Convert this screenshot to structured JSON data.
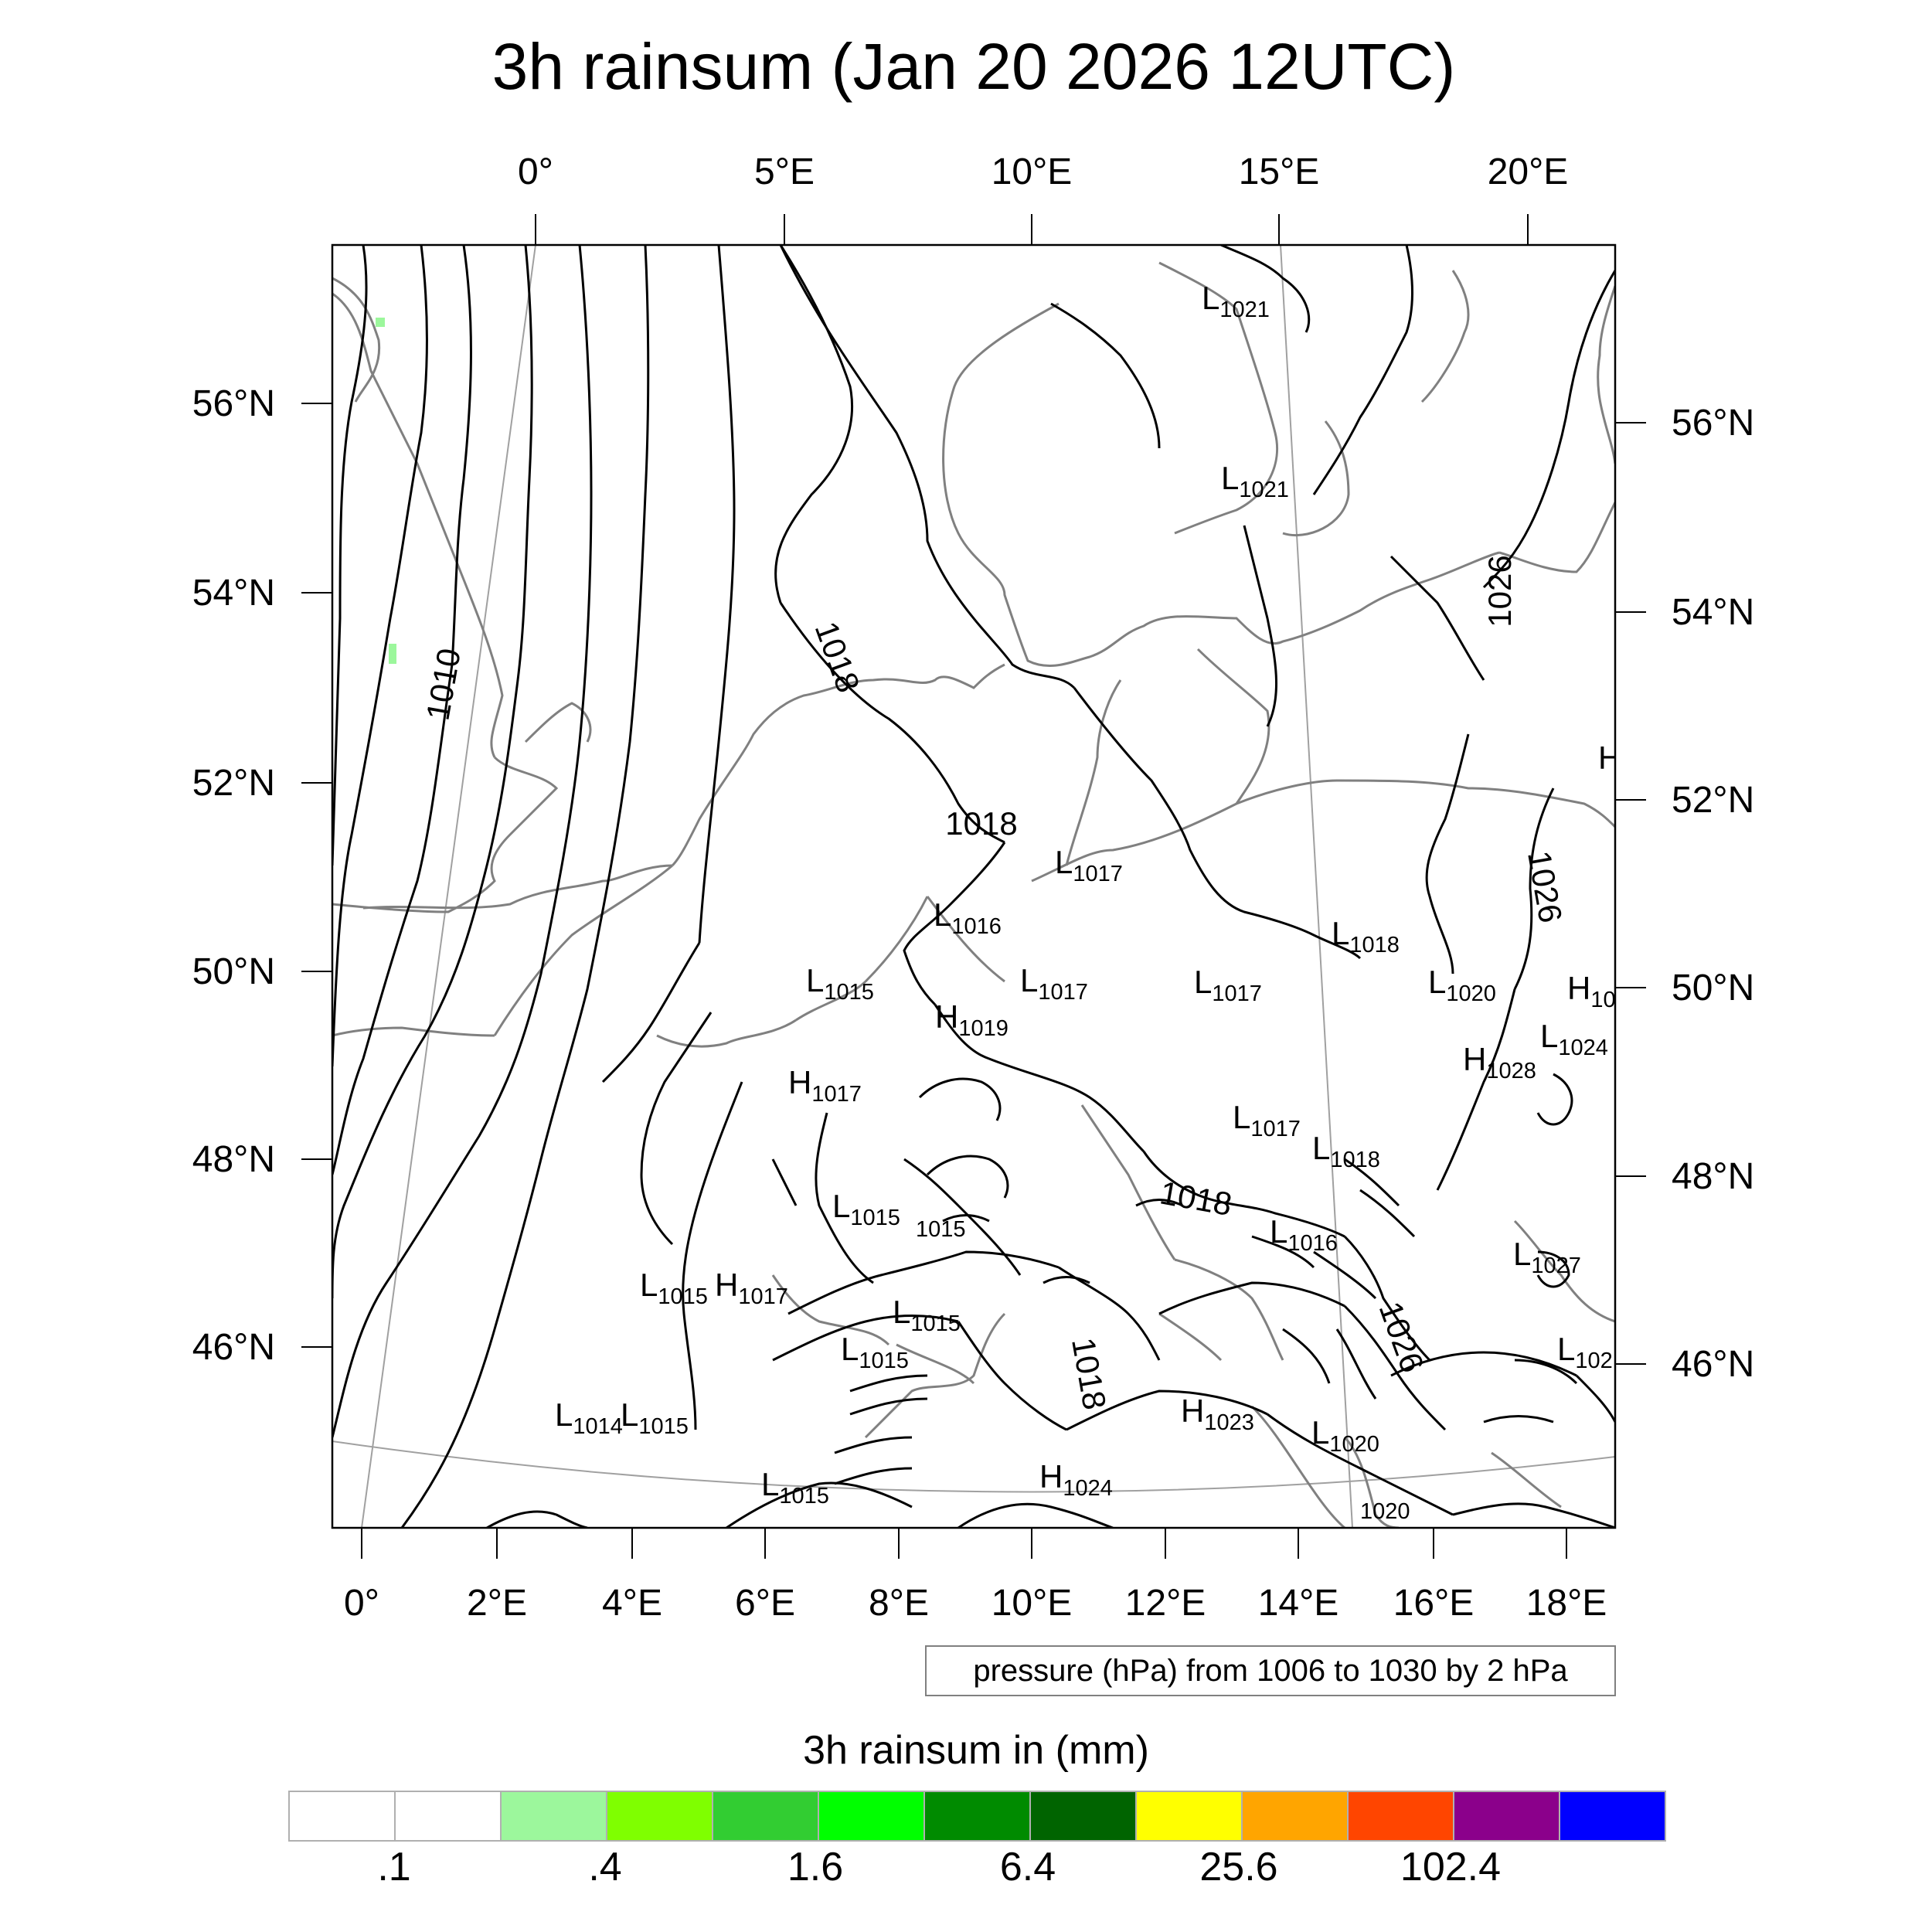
{
  "title": "3h rainsum (Jan 20 2026 12UTC)",
  "top_lon_labels": [
    "0°",
    "5°E",
    "10°E",
    "15°E",
    "20°E"
  ],
  "bottom_lon_labels": [
    "0°",
    "2°E",
    "4°E",
    "6°E",
    "8°E",
    "10°E",
    "12°E",
    "14°E",
    "16°E",
    "18°E"
  ],
  "left_lat_labels": [
    "56°N",
    "54°N",
    "52°N",
    "50°N",
    "48°N",
    "46°N"
  ],
  "right_lat_labels": [
    "56°N",
    "54°N",
    "52°N",
    "50°N",
    "48°N",
    "46°N"
  ],
  "contour_labels": [
    "1010",
    "1018",
    "1018",
    "1018",
    "1018",
    "1026",
    "1026",
    "1026"
  ],
  "pressure_centers": [
    {
      "letter": "L",
      "value": "1021"
    },
    {
      "letter": "L",
      "value": "1021"
    },
    {
      "letter": "L",
      "value": "1017"
    },
    {
      "letter": "L",
      "value": "1016"
    },
    {
      "letter": "L",
      "value": "1018"
    },
    {
      "letter": "L",
      "value": "1015"
    },
    {
      "letter": "L",
      "value": "1017"
    },
    {
      "letter": "L",
      "value": "1017"
    },
    {
      "letter": "L",
      "value": "1020"
    },
    {
      "letter": "H",
      "value": "10"
    },
    {
      "letter": "H",
      "value": "1019"
    },
    {
      "letter": "L",
      "value": "1024"
    },
    {
      "letter": "H",
      "value": "1028"
    },
    {
      "letter": "H",
      "value": "1017"
    },
    {
      "letter": "L",
      "value": "1017"
    },
    {
      "letter": "L",
      "value": "1018"
    },
    {
      "letter": "L",
      "value": "1015"
    },
    {
      "letter": "",
      "value": "1015"
    },
    {
      "letter": "L",
      "value": "1016"
    },
    {
      "letter": "L",
      "value": "1027"
    },
    {
      "letter": "L",
      "value": "1015"
    },
    {
      "letter": "H",
      "value": "1017"
    },
    {
      "letter": "L",
      "value": "1015"
    },
    {
      "letter": "L",
      "value": "1015"
    },
    {
      "letter": "L",
      "value": "102"
    },
    {
      "letter": "L",
      "value": "1014"
    },
    {
      "letter": "L",
      "value": "1015"
    },
    {
      "letter": "H",
      "value": "1023"
    },
    {
      "letter": "L",
      "value": "1020"
    },
    {
      "letter": "L",
      "value": "1015"
    },
    {
      "letter": "H",
      "value": "1024"
    },
    {
      "letter": "",
      "value": "1020"
    },
    {
      "letter": "H",
      "value": ""
    }
  ],
  "info_box": "pressure (hPa) from 1006 to 1030 by 2 hPa",
  "legend": {
    "title": "3h rainsum in (mm)",
    "colors": [
      "#ffffff",
      "#ffffff",
      "#9cf79c",
      "#7fff00",
      "#32cd32",
      "#00ff00",
      "#008b00",
      "#006400",
      "#ffff00",
      "#ffa500",
      "#ff4500",
      "#8b008b",
      "#0000ff"
    ],
    "labels": [
      ".1",
      ".4",
      "1.6",
      "6.4",
      "25.6",
      "102.4"
    ]
  }
}
